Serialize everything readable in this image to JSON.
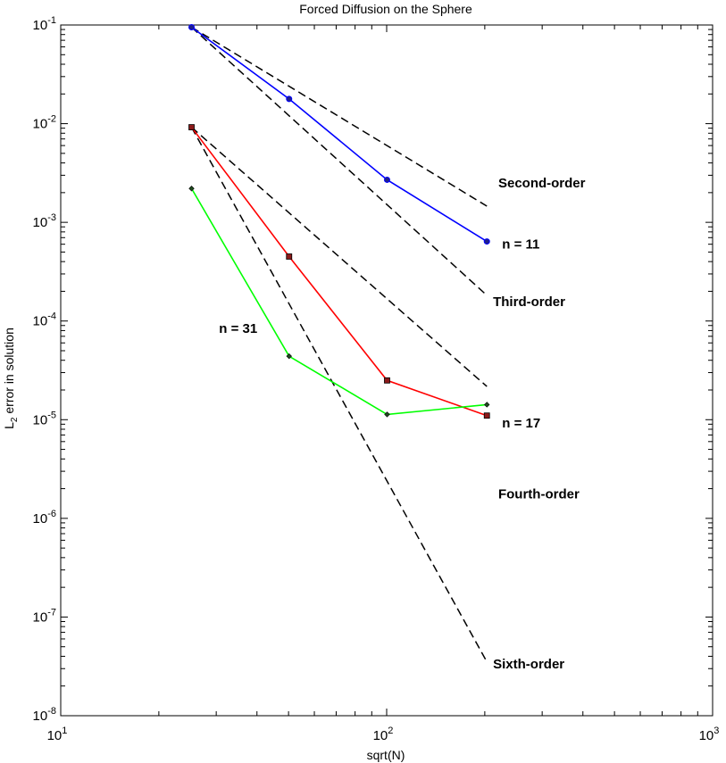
{
  "chart_data": {
    "type": "line",
    "title": "Forced Diffusion on the Sphere",
    "xlabel": "sqrt(N)",
    "ylabel_main": "L",
    "ylabel_sub": "2",
    "ylabel_rest": " error in solution",
    "xscale": "log",
    "yscale": "log",
    "xlim": [
      10,
      1000
    ],
    "ylim": [
      1e-08,
      0.1
    ],
    "x_ticks": [
      {
        "value": 10,
        "base": "10",
        "exp": "1"
      },
      {
        "value": 100,
        "base": "10",
        "exp": "2"
      },
      {
        "value": 1000,
        "base": "10",
        "exp": "3"
      }
    ],
    "y_ticks": [
      {
        "value": 0.1,
        "base": "10",
        "exp": "-1"
      },
      {
        "value": 0.01,
        "base": "10",
        "exp": "-2"
      },
      {
        "value": 0.001,
        "base": "10",
        "exp": "-3"
      },
      {
        "value": 0.0001,
        "base": "10",
        "exp": "-4"
      },
      {
        "value": 1e-05,
        "base": "10",
        "exp": "-5"
      },
      {
        "value": 1e-06,
        "base": "10",
        "exp": "-6"
      },
      {
        "value": 1e-07,
        "base": "10",
        "exp": "-7"
      },
      {
        "value": 1e-08,
        "base": "10",
        "exp": "-8"
      }
    ],
    "grid": false,
    "series": [
      {
        "name": "n = 11",
        "color": "#0000ff",
        "marker": "circle",
        "x": [
          25.2,
          50.2,
          100.3,
          203
        ],
        "y": [
          0.095,
          0.0178,
          0.0027,
          0.00064
        ]
      },
      {
        "name": "n = 17",
        "color": "#ff0000",
        "marker": "square",
        "x": [
          25.2,
          50.2,
          100.3,
          203
        ],
        "y": [
          0.0092,
          0.00045,
          2.5e-05,
          1.1e-05
        ]
      },
      {
        "name": "n = 31",
        "color": "#00ff00",
        "marker": "diamond",
        "x": [
          25.2,
          50.2,
          100.3,
          203
        ],
        "y": [
          0.0022,
          4.4e-05,
          1.13e-05,
          1.42e-05
        ]
      }
    ],
    "reference_lines": [
      {
        "name": "Second-order",
        "color": "#000000",
        "style": "dashed",
        "x": [
          25.2,
          203
        ],
        "y": [
          0.095,
          0.00146
        ]
      },
      {
        "name": "Third-order",
        "color": "#000000",
        "style": "dashed",
        "x": [
          25.2,
          203
        ],
        "y": [
          0.095,
          0.000182
        ]
      },
      {
        "name": "Fourth-order",
        "color": "#000000",
        "style": "dashed",
        "x": [
          25.2,
          203
        ],
        "y": [
          0.0092,
          2.17e-05
        ]
      },
      {
        "name": "Sixth-order",
        "color": "#000000",
        "style": "dashed",
        "x": [
          25.2,
          203
        ],
        "y": [
          0.0092,
          3.51e-08
        ]
      }
    ],
    "annotations": [
      {
        "text": "Second-order",
        "x": 220,
        "y": 0.00225
      },
      {
        "text": "n = 11",
        "x": 226,
        "y": 0.00054
      },
      {
        "text": "Third-order",
        "x": 212,
        "y": 0.000141
      },
      {
        "text": "n = 31",
        "x": 30.6,
        "y": 7.6e-05
      },
      {
        "text": "n = 17",
        "x": 226,
        "y": 8.3e-06
      },
      {
        "text": "Fourth-order",
        "x": 220,
        "y": 1.6e-06
      },
      {
        "text": "Sixth-order",
        "x": 212,
        "y": 3e-08
      }
    ]
  }
}
